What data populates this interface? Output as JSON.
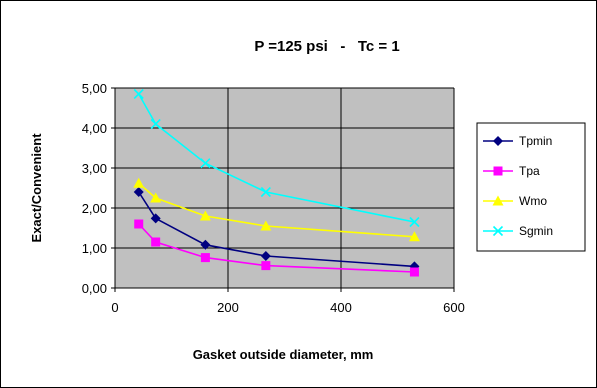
{
  "chart_data": {
    "type": "line",
    "title": "P =125 psi   -   Tc = 1",
    "xlabel": "Gasket outside diameter, mm",
    "ylabel": "Exact/Convenient",
    "xlim": [
      0,
      600
    ],
    "ylim": [
      0,
      5
    ],
    "xticks": [
      0,
      200,
      400,
      600
    ],
    "yticks": [
      0,
      1,
      2,
      3,
      4,
      5
    ],
    "xtick_labels": [
      "0",
      "200",
      "400",
      "600"
    ],
    "ytick_labels": [
      "0,00",
      "1,00",
      "2,00",
      "3,00",
      "4,00",
      "5,00"
    ],
    "grid": true,
    "legend_position": "right",
    "x": [
      42,
      72,
      160,
      267,
      530
    ],
    "series": [
      {
        "name": "Tpmin",
        "values": [
          2.4,
          1.74,
          1.08,
          0.8,
          0.54
        ],
        "color": "#000080",
        "marker": "diamond"
      },
      {
        "name": "Tpa",
        "values": [
          1.6,
          1.15,
          0.76,
          0.56,
          0.4
        ],
        "color": "#ff00ff",
        "marker": "square"
      },
      {
        "name": "Wmo",
        "values": [
          2.62,
          2.25,
          1.8,
          1.55,
          1.28
        ],
        "color": "#ffff00",
        "marker": "triangle"
      },
      {
        "name": "Sgmin",
        "values": [
          4.85,
          4.1,
          3.12,
          2.4,
          1.65
        ],
        "color": "#00ffff",
        "marker": "x"
      }
    ]
  }
}
